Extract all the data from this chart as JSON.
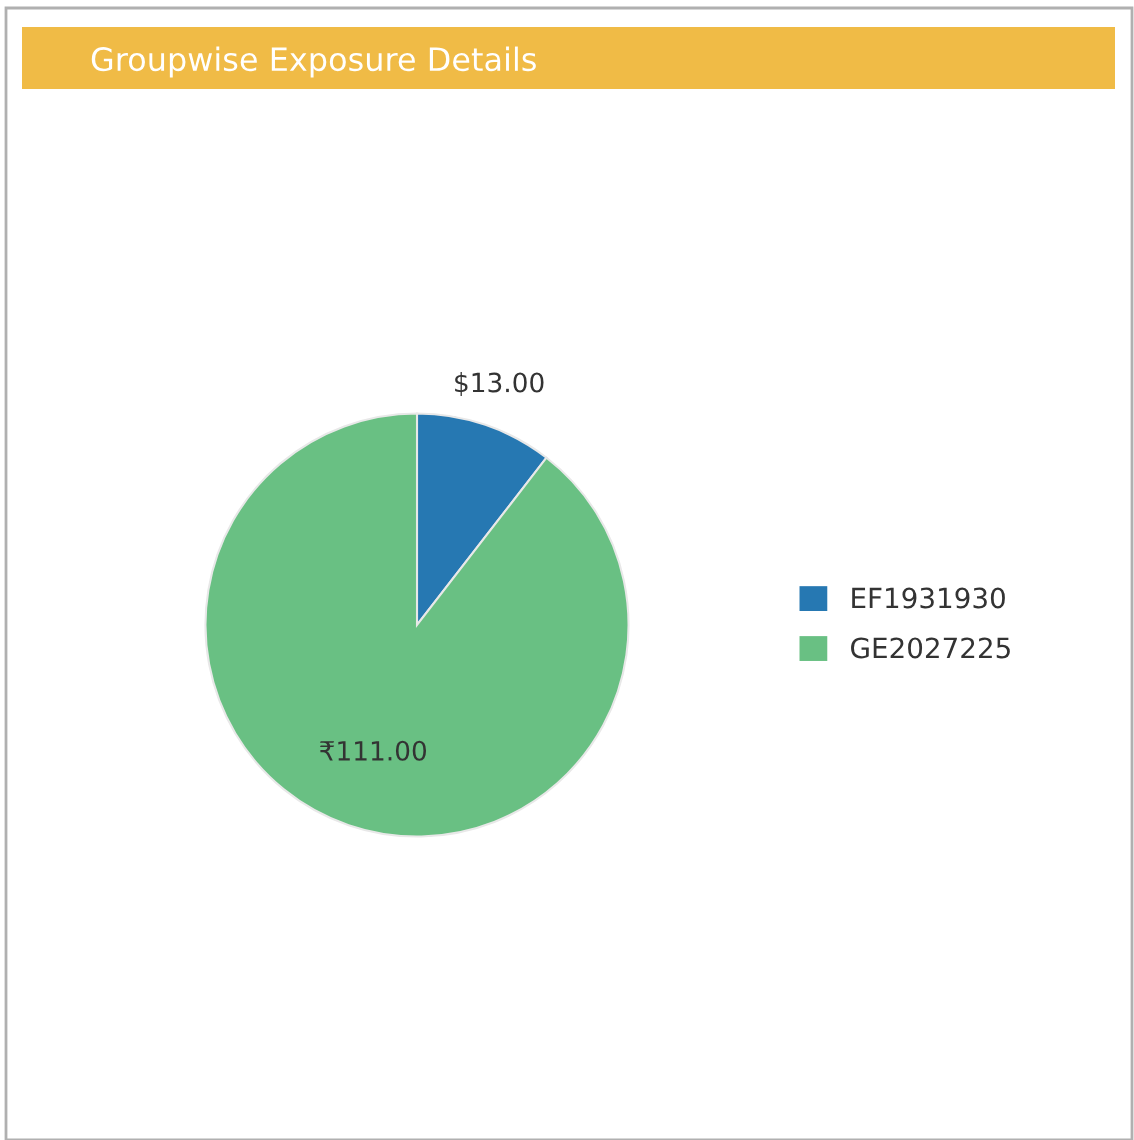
{
  "chart_data": {
    "type": "pie",
    "title": "Groupwise Exposure Details",
    "categories": [
      "EF1931930",
      "GE2027225"
    ],
    "values": [
      13,
      111
    ],
    "colors": [
      "#2678b2",
      "#69c083"
    ],
    "value_labels": [
      "$13.00",
      "₹111.00"
    ],
    "legend": "right"
  }
}
